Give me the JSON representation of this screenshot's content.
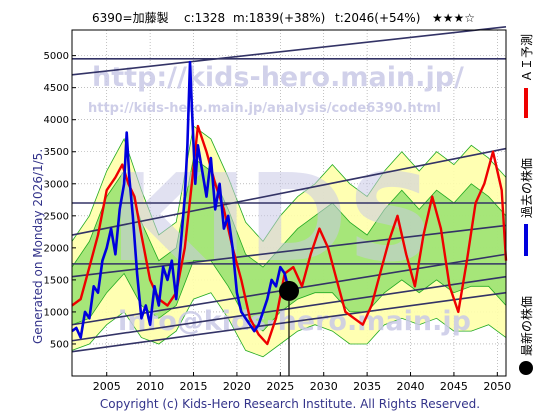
{
  "header": {
    "code_name": "6390=加藤製",
    "current": "c:1328",
    "mid": "m:1839(+38%)",
    "target": "t:2046(+54%)",
    "stars": "★★★☆"
  },
  "watermarks": {
    "url_main": "http://kids-hero.main.jp/",
    "url_analysis": "http://kids-hero.main.jp/analysis/code6390.html",
    "email": "info@kids-hero.main.jp",
    "big_text": "KIDS"
  },
  "generated_note": "Generated on Monday 2026/1/5.",
  "copyright": "Copyright (c) Kids-Hero Research Institute. All Rights Reserved.",
  "legend": [
    {
      "label": "ＡＩ予測",
      "color": "#ee0000",
      "marker": "line"
    },
    {
      "label": "過去の株価",
      "color": "#0000dd",
      "marker": "line"
    },
    {
      "label": "最新の株価",
      "color": "#000000",
      "marker": "dot"
    }
  ],
  "colors": {
    "ai_forecast": "#ee0000",
    "past_price": "#0000dd",
    "band_green": "#22aa22",
    "band_fill_green": "#88dd66",
    "band_fill_yellow": "#ffffaa",
    "trend_lines": "#333366",
    "watermark": "#c9c9e6"
  },
  "chart_data": {
    "type": "line",
    "xlim": [
      2001,
      2051
    ],
    "ylim": [
      0,
      5400
    ],
    "x_ticks": [
      2005,
      2010,
      2015,
      2020,
      2025,
      2030,
      2035,
      2040,
      2045,
      2050
    ],
    "y_ticks": [
      500,
      1000,
      1500,
      2000,
      2500,
      3000,
      3500,
      4000,
      4500,
      5000
    ],
    "grid": true,
    "past_price": {
      "x": [
        2001.0,
        2001.5,
        2002.0,
        2002.5,
        2003.0,
        2003.5,
        2004.0,
        2004.5,
        2005.0,
        2005.5,
        2006.0,
        2006.5,
        2007.0,
        2007.3,
        2007.6,
        2008.0,
        2008.5,
        2009.0,
        2009.5,
        2010.0,
        2010.5,
        2011.0,
        2011.5,
        2012.0,
        2012.5,
        2013.0,
        2013.5,
        2014.0,
        2014.3,
        2014.6,
        2014.9,
        2015.2,
        2015.5,
        2016.0,
        2016.5,
        2017.0,
        2017.5,
        2018.0,
        2018.5,
        2019.0,
        2019.5,
        2020.0,
        2020.5,
        2021.0,
        2021.5,
        2022.0,
        2022.5,
        2023.0,
        2023.5,
        2024.0,
        2024.5,
        2025.0,
        2025.5,
        2026.0
      ],
      "y": [
        700,
        750,
        600,
        1000,
        900,
        1400,
        1300,
        1800,
        2000,
        2300,
        1900,
        2600,
        3000,
        3800,
        3100,
        2500,
        1600,
        900,
        1100,
        800,
        1400,
        1100,
        1700,
        1500,
        1800,
        1200,
        2000,
        2800,
        3600,
        4900,
        3900,
        3000,
        3600,
        3200,
        2800,
        3400,
        2600,
        3000,
        2300,
        2500,
        2000,
        1300,
        1000,
        900,
        800,
        700,
        800,
        1000,
        1200,
        1500,
        1400,
        1700,
        1600,
        1328
      ]
    },
    "ai_forecast": {
      "x": [
        2001.0,
        2002.0,
        2003.0,
        2004.0,
        2005.0,
        2006.0,
        2006.8,
        2007.5,
        2008.2,
        2009.0,
        2010.0,
        2011.0,
        2012.0,
        2013.0,
        2014.0,
        2014.8,
        2015.5,
        2016.5,
        2017.5,
        2018.5,
        2019.5,
        2020.5,
        2021.5,
        2022.5,
        2023.5,
        2024.5,
        2025.5,
        2026.5,
        2027.5,
        2028.5,
        2029.5,
        2030.5,
        2031.5,
        2032.5,
        2033.5,
        2034.5,
        2035.5,
        2036.5,
        2037.5,
        2038.5,
        2039.5,
        2040.5,
        2041.5,
        2042.5,
        2043.5,
        2044.5,
        2045.5,
        2046.5,
        2047.5,
        2048.5,
        2049.5,
        2050.5,
        2051.0
      ],
      "y": [
        1100,
        1200,
        1700,
        2200,
        2900,
        3100,
        3300,
        3000,
        2800,
        2200,
        1500,
        1200,
        1100,
        1300,
        2000,
        3000,
        3900,
        3500,
        3000,
        2600,
        2000,
        1500,
        900,
        650,
        500,
        900,
        1600,
        1700,
        1400,
        1900,
        2300,
        2000,
        1500,
        1000,
        900,
        800,
        1100,
        1600,
        2100,
        2500,
        1900,
        1400,
        2200,
        2800,
        2300,
        1400,
        1000,
        1800,
        2700,
        3000,
        3500,
        2900,
        1800
      ]
    },
    "latest_price": {
      "x": 2026.0,
      "y": 1328
    },
    "trend_lines": [
      {
        "x": [
          2001,
          2051
        ],
        "y": [
          4950,
          4950
        ]
      },
      {
        "x": [
          2001,
          2051
        ],
        "y": [
          4700,
          5450
        ]
      },
      {
        "x": [
          2001,
          2051
        ],
        "y": [
          2700,
          2700
        ]
      },
      {
        "x": [
          2001,
          2051
        ],
        "y": [
          2200,
          3550
        ]
      },
      {
        "x": [
          2001,
          2051
        ],
        "y": [
          1750,
          1750
        ]
      },
      {
        "x": [
          2001,
          2051
        ],
        "y": [
          1550,
          2350
        ]
      },
      {
        "x": [
          2001,
          2051
        ],
        "y": [
          800,
          1900
        ]
      },
      {
        "x": [
          2001,
          2051
        ],
        "y": [
          550,
          1550
        ]
      },
      {
        "x": [
          2001,
          2051
        ],
        "y": [
          380,
          1300
        ]
      }
    ],
    "band_outer_upper": {
      "x": [
        2001,
        2003,
        2005,
        2007,
        2009,
        2011,
        2013,
        2015,
        2017,
        2019,
        2021,
        2023,
        2025,
        2027,
        2029,
        2031,
        2033,
        2035,
        2037,
        2039,
        2041,
        2043,
        2045,
        2047,
        2049,
        2051
      ],
      "y": [
        2100,
        2500,
        3200,
        3700,
        2900,
        2200,
        2400,
        3900,
        3700,
        3100,
        2400,
        2100,
        2500,
        2800,
        3000,
        3300,
        3000,
        2800,
        3200,
        3500,
        3200,
        3500,
        3300,
        3600,
        3400,
        3100
      ]
    },
    "band_outer_lower": {
      "x": [
        2001,
        2003,
        2005,
        2007,
        2009,
        2011,
        2013,
        2015,
        2017,
        2019,
        2021,
        2023,
        2025,
        2027,
        2029,
        2031,
        2033,
        2035,
        2037,
        2039,
        2041,
        2043,
        2045,
        2047,
        2049,
        2051
      ],
      "y": [
        400,
        500,
        800,
        1000,
        600,
        500,
        700,
        1200,
        1300,
        900,
        400,
        300,
        500,
        700,
        800,
        700,
        500,
        500,
        800,
        900,
        800,
        900,
        700,
        700,
        800,
        600
      ]
    },
    "band_inner_upper": {
      "x": [
        2001,
        2003,
        2005,
        2007,
        2009,
        2011,
        2013,
        2015,
        2017,
        2019,
        2021,
        2023,
        2025,
        2027,
        2029,
        2031,
        2033,
        2035,
        2037,
        2039,
        2041,
        2043,
        2045,
        2047,
        2049,
        2051
      ],
      "y": [
        1700,
        2100,
        2800,
        3200,
        2400,
        1800,
        2000,
        3400,
        3200,
        2600,
        1900,
        1700,
        2000,
        2300,
        2500,
        2700,
        2400,
        2200,
        2600,
        2900,
        2600,
        2900,
        2700,
        3000,
        2800,
        2500
      ]
    },
    "band_inner_lower": {
      "x": [
        2001,
        2003,
        2005,
        2007,
        2009,
        2011,
        2013,
        2015,
        2017,
        2019,
        2021,
        2023,
        2025,
        2027,
        2029,
        2031,
        2033,
        2035,
        2037,
        2039,
        2041,
        2043,
        2045,
        2047,
        2049,
        2051
      ],
      "y": [
        800,
        900,
        1300,
        1600,
        1100,
        900,
        1100,
        1800,
        1800,
        1400,
        900,
        700,
        1000,
        1200,
        1300,
        1300,
        1000,
        1000,
        1300,
        1500,
        1300,
        1500,
        1300,
        1400,
        1400,
        1100
      ]
    }
  }
}
